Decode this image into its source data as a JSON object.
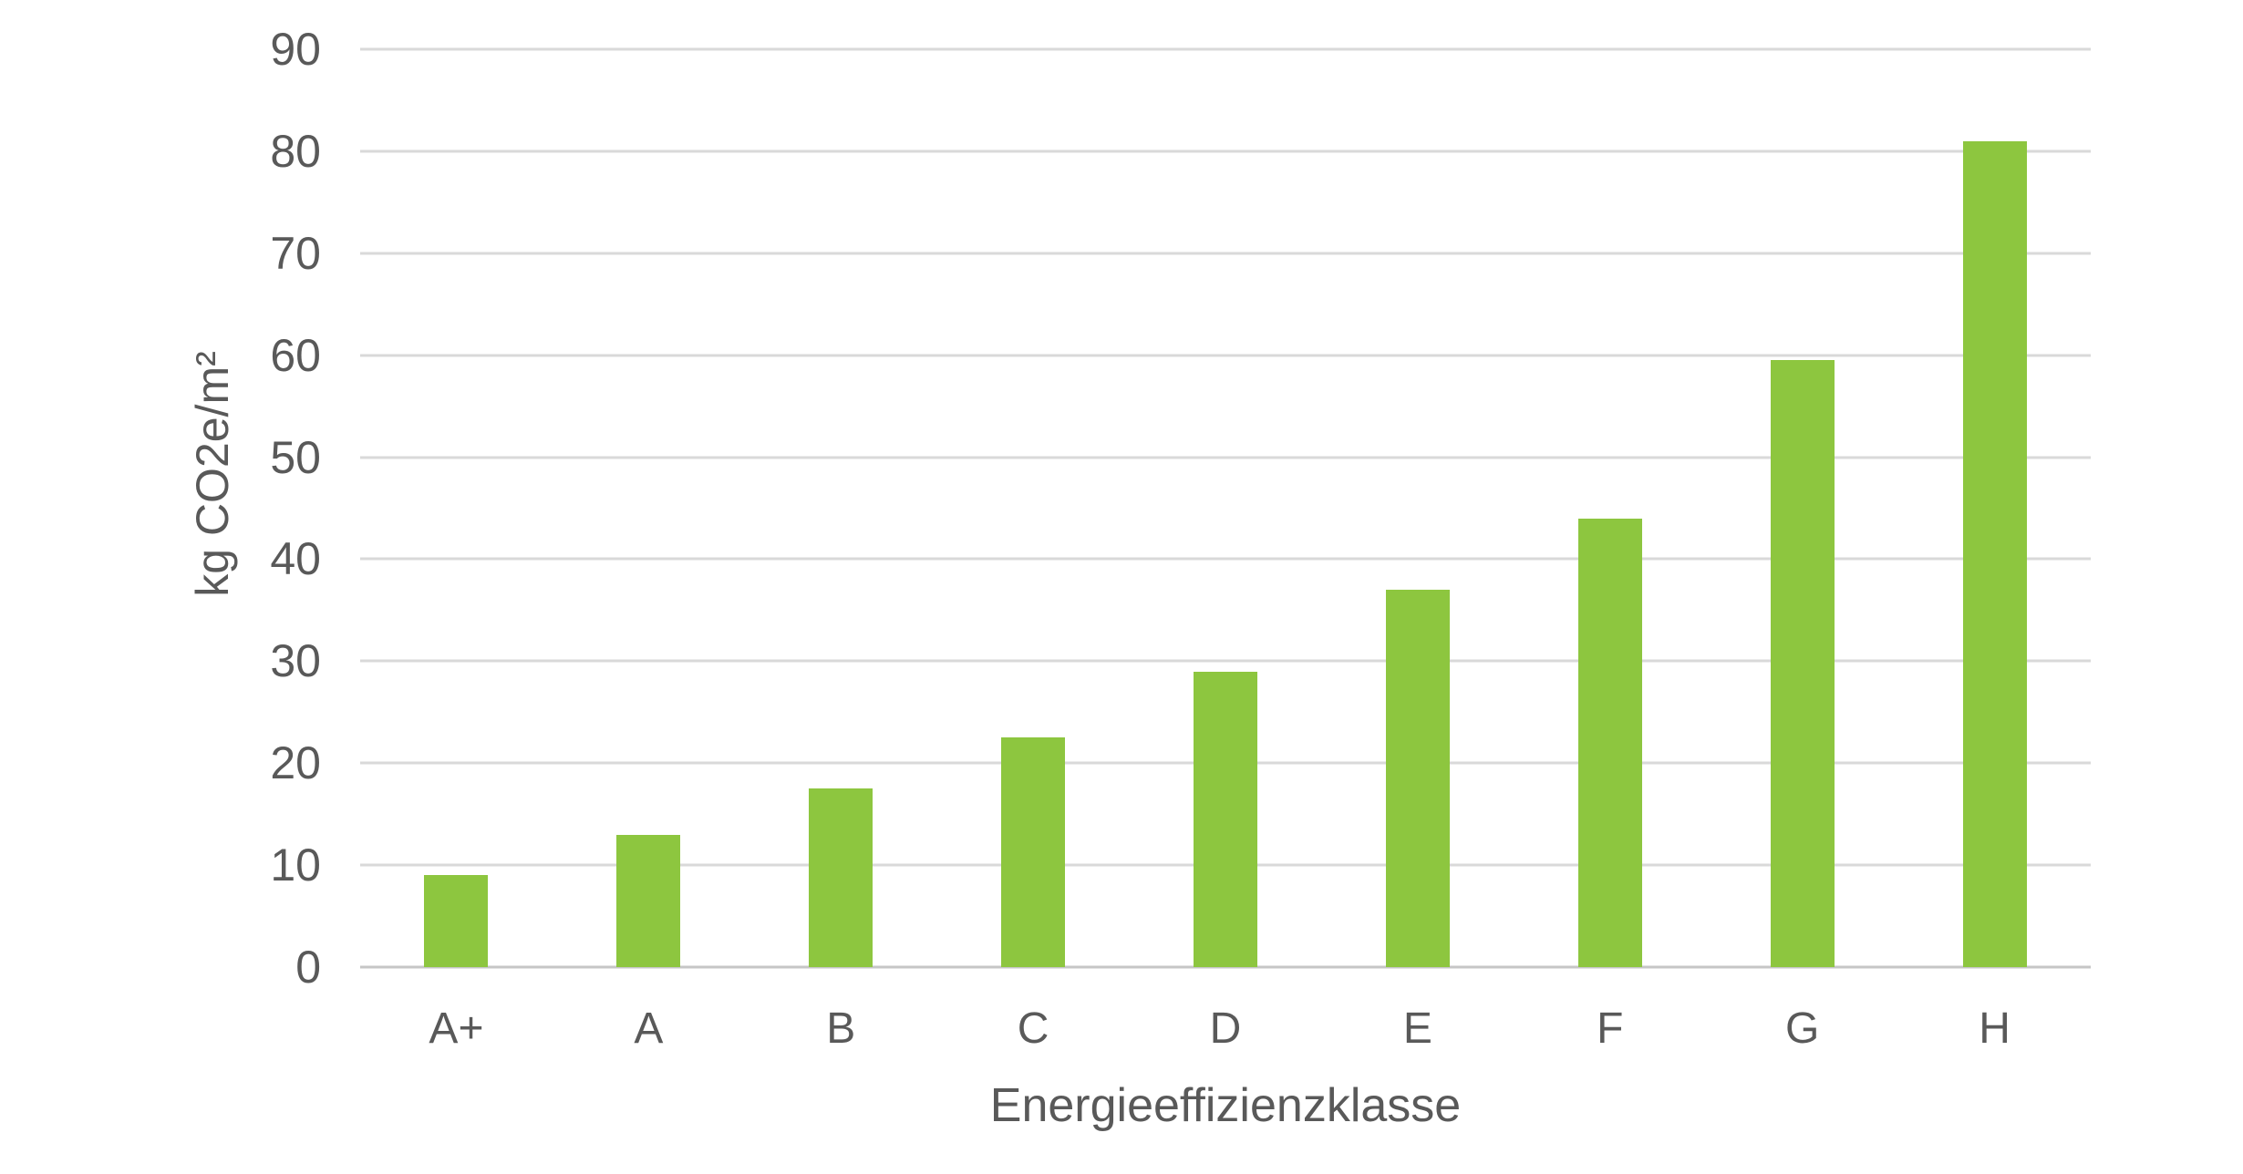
{
  "chart_data": {
    "type": "bar",
    "title": "",
    "categories": [
      "A+",
      "A",
      "B",
      "C",
      "D",
      "E",
      "F",
      "G",
      "H"
    ],
    "values": [
      9,
      13,
      17.5,
      22.5,
      29,
      37,
      44,
      59.5,
      81
    ],
    "xlabel": "Energieeffizienzklasse",
    "ylabel": "kg CO2e/m²",
    "ylim": [
      0,
      90
    ],
    "yticks": [
      0,
      10,
      20,
      30,
      40,
      50,
      60,
      70,
      80,
      90
    ],
    "grid": "horizontal-only",
    "legend": "none",
    "colors": {
      "bar": "#8dc63f",
      "gridline": "#d9d9d9",
      "axis_line": "#c6c6c6",
      "text": "#595959",
      "background": "#ffffff"
    }
  }
}
